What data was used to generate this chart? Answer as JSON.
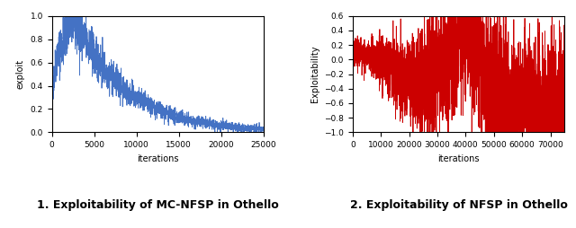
{
  "plot1": {
    "title": "1. Exploitability of MC-NFSP in Othello",
    "ylabel": "exploit",
    "xlabel": "iterations",
    "color": "#4472C4",
    "xlim": [
      0,
      25000
    ],
    "ylim": [
      0.0,
      1.0
    ],
    "xticks": [
      0,
      5000,
      10000,
      15000,
      20000,
      25000
    ],
    "yticks": [
      0.0,
      0.2,
      0.4,
      0.6,
      0.8,
      1.0
    ]
  },
  "plot2": {
    "title": "2. Exploitability of NFSP in Othello",
    "ylabel": "Exploitability",
    "xlabel": "iterations",
    "color": "#CC0000",
    "xlim": [
      0,
      75000
    ],
    "ylim": [
      -1.0,
      0.6
    ],
    "xticks": [
      0,
      10000,
      20000,
      30000,
      40000,
      50000,
      60000,
      70000
    ],
    "yticks": [
      -1.0,
      -0.8,
      -0.6,
      -0.4,
      -0.2,
      0.0,
      0.2,
      0.4,
      0.6
    ]
  },
  "fig_width": 6.4,
  "fig_height": 2.54,
  "dpi": 100,
  "title_fontsize": 9,
  "label_fontsize": 7,
  "tick_fontsize": 6.5
}
